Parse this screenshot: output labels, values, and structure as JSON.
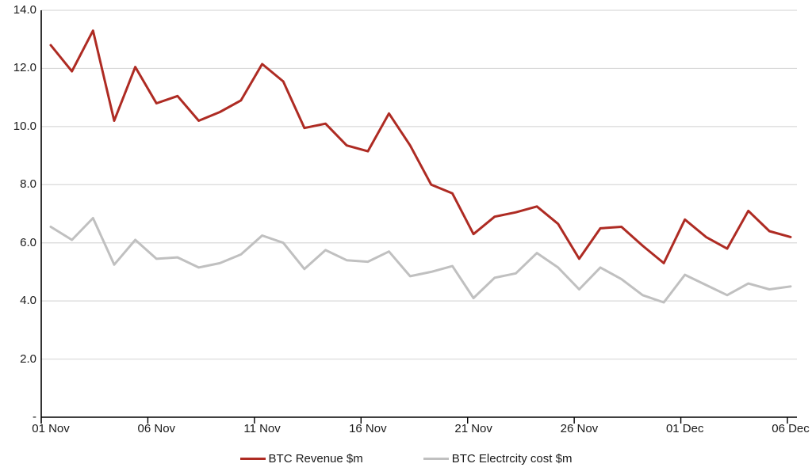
{
  "legend": {
    "revenue_label": "BTC Revenue $m",
    "cost_label": "BTC Electrcity cost $m"
  },
  "chart_data": {
    "type": "line",
    "title": "",
    "xlabel": "",
    "ylabel": "",
    "ylim": [
      0,
      14
    ],
    "ytick_step": 2,
    "ytick_labels": [
      "-",
      "2.0",
      "4.0",
      "6.0",
      "8.0",
      "10.0",
      "12.0",
      "14.0"
    ],
    "xtick_labels": [
      "01 Nov",
      "06 Nov",
      "11 Nov",
      "16 Nov",
      "21 Nov",
      "26 Nov",
      "01 Dec",
      "06 Dec"
    ],
    "xtick_every": 5,
    "grid": true,
    "legend_position": "bottom",
    "gridline_color": "#d9d9d9",
    "axis_color": "#000000",
    "text_color": "#1a1a1a",
    "categories": [
      "01 Nov",
      "02 Nov",
      "03 Nov",
      "04 Nov",
      "05 Nov",
      "06 Nov",
      "07 Nov",
      "08 Nov",
      "09 Nov",
      "10 Nov",
      "11 Nov",
      "12 Nov",
      "13 Nov",
      "14 Nov",
      "15 Nov",
      "16 Nov",
      "17 Nov",
      "18 Nov",
      "19 Nov",
      "20 Nov",
      "21 Nov",
      "22 Nov",
      "23 Nov",
      "24 Nov",
      "25 Nov",
      "26 Nov",
      "27 Nov",
      "28 Nov",
      "29 Nov",
      "30 Nov",
      "01 Dec",
      "02 Dec",
      "03 Dec",
      "04 Dec",
      "05 Dec",
      "06 Dec"
    ],
    "series": [
      {
        "name": "BTC Revenue $m",
        "color": "#ae2b23",
        "values": [
          12.8,
          11.9,
          13.3,
          10.2,
          12.05,
          10.8,
          11.05,
          10.2,
          10.5,
          10.9,
          12.15,
          11.55,
          9.95,
          10.1,
          9.35,
          9.15,
          10.45,
          9.35,
          8.0,
          7.7,
          6.3,
          6.9,
          7.05,
          7.25,
          6.65,
          5.45,
          6.5,
          6.55,
          5.9,
          5.3,
          6.8,
          6.2,
          5.8,
          7.1,
          6.4,
          6.2
        ]
      },
      {
        "name": "BTC Electrcity cost $m",
        "color": "#c0c0c0",
        "values": [
          6.55,
          6.1,
          6.85,
          5.25,
          6.1,
          5.45,
          5.5,
          5.15,
          5.3,
          5.6,
          6.25,
          6.0,
          5.1,
          5.75,
          5.4,
          5.35,
          5.7,
          4.85,
          5.0,
          5.2,
          4.1,
          4.8,
          4.95,
          5.65,
          5.15,
          4.4,
          5.15,
          4.75,
          4.2,
          3.95,
          4.9,
          4.55,
          4.2,
          4.6,
          4.4,
          4.5
        ]
      }
    ]
  }
}
